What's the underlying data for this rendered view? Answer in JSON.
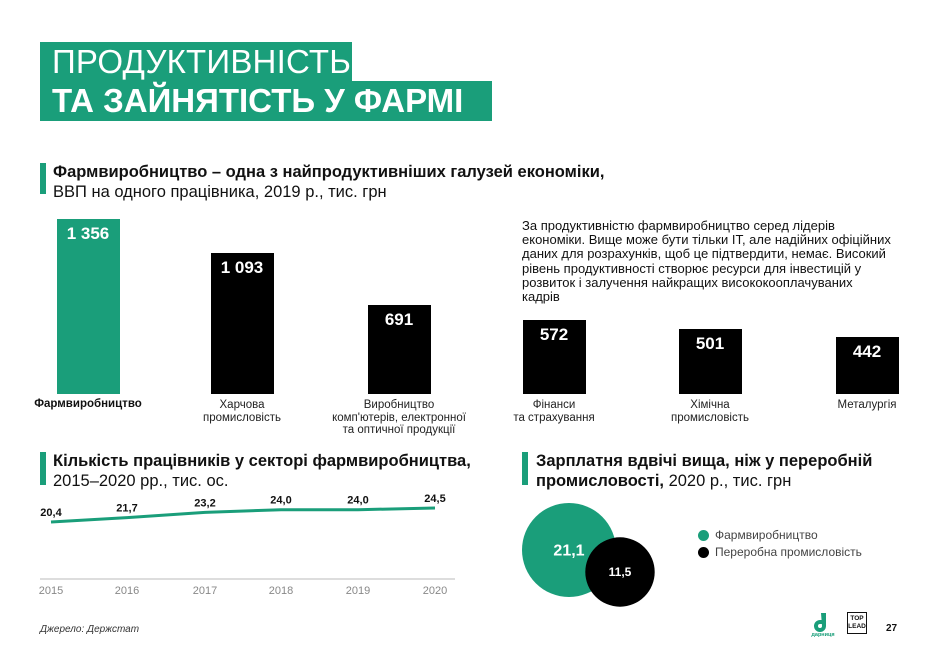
{
  "title": {
    "line1": "ПРОДУКТИВНІСТЬ",
    "line2": "ТА ЗАЙНЯТІСТЬ У ФАРМІ"
  },
  "section1": {
    "heading_bold": "Фармвиробництво – одна з найпродуктивніших галузей економіки,",
    "heading_sub": "ВВП на одного працівника, 2019 р., тис. грн",
    "note": "За продуктивністю фармвиробництво серед лідерів економіки. Вище може бути тільки IT, але надійних офіційних даних для розрахунків, щоб це підтвердити, немає. Високий рівень продуктивності створює ресурси для інвестицій у розвиток і залучення найкращих висококооплачуваних кадрів"
  },
  "section2": {
    "heading_bold": "Кількість працівників у секторі фармвиробництва,",
    "heading_sub": "2015–2020 рр., тис. ос."
  },
  "section3": {
    "heading_bold1": "Зарплатня вдвічі вища, ніж у переробній",
    "heading_bold2": "промисловості,",
    "heading_sub": " 2020 р., тис. грн"
  },
  "chart_data": [
    {
      "type": "bar",
      "categories": [
        "Фармвиробництво",
        "Харчова\nпромисловість",
        "Виробництво\nкомп'ютерів, електронної\nта оптичної продукції",
        "Фінанси\nта страхування",
        "Хімічна\nпромисловість",
        "Металургія"
      ],
      "values": [
        1356,
        1093,
        691,
        572,
        501,
        442
      ],
      "value_labels": [
        "1 356",
        "1 093",
        "691",
        "572",
        "501",
        "442"
      ],
      "colors": [
        "#1a9e7a",
        "#000000",
        "#000000",
        "#000000",
        "#000000",
        "#000000"
      ]
    },
    {
      "type": "line",
      "x": [
        "2015",
        "2016",
        "2017",
        "2018",
        "2019",
        "2020"
      ],
      "values": [
        20.4,
        21.7,
        23.2,
        24.0,
        24.0,
        24.5
      ],
      "value_labels": [
        "20,4",
        "21,7",
        "23,2",
        "24,0",
        "24,0",
        "24,5"
      ],
      "color": "#1a9e7a"
    },
    {
      "type": "bubble",
      "series": [
        {
          "name": "Фармвиробництво",
          "value": 21.1,
          "label": "21,1",
          "color": "#1a9e7a"
        },
        {
          "name": "Переробна промисловість",
          "value": 11.5,
          "label": "11,5",
          "color": "#000000"
        }
      ]
    }
  ],
  "footer": {
    "source": "Джерело: Держстат",
    "page": "27",
    "logo_text": "дарниця",
    "toplead_line1": "TOP",
    "toplead_line2": "LEAD"
  }
}
